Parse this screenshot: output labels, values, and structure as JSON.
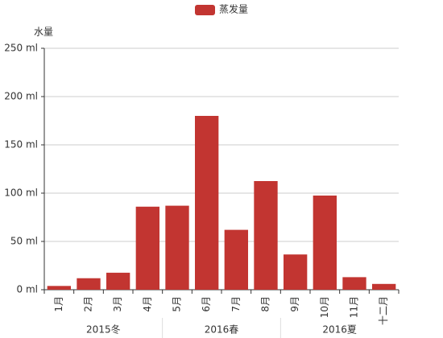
{
  "chart_data": {
    "type": "bar",
    "y_axis_label": "水量",
    "categories": [
      "1月",
      "2月",
      "3月",
      "4月",
      "5月",
      "6月",
      "7月",
      "8月",
      "9月",
      "10月",
      "11月",
      "十二月"
    ],
    "group_labels": [
      "2015冬",
      "2016春",
      "2016夏"
    ],
    "series": [
      {
        "name": "蒸发量",
        "color": "#c23531",
        "values": [
          3.9,
          11.9,
          17.6,
          86,
          87,
          180,
          62,
          112.5,
          36.5,
          97.5,
          13,
          6
        ]
      }
    ],
    "ylim": [
      0,
      250
    ],
    "yticks": [
      {
        "value": 0,
        "label": "0 ml"
      },
      {
        "value": 50,
        "label": "50 ml"
      },
      {
        "value": 100,
        "label": "100 ml"
      },
      {
        "value": 150,
        "label": "150 ml"
      },
      {
        "value": 200,
        "label": "200 ml"
      },
      {
        "value": 250,
        "label": "250 ml"
      }
    ],
    "grid": true,
    "legend": "top"
  }
}
